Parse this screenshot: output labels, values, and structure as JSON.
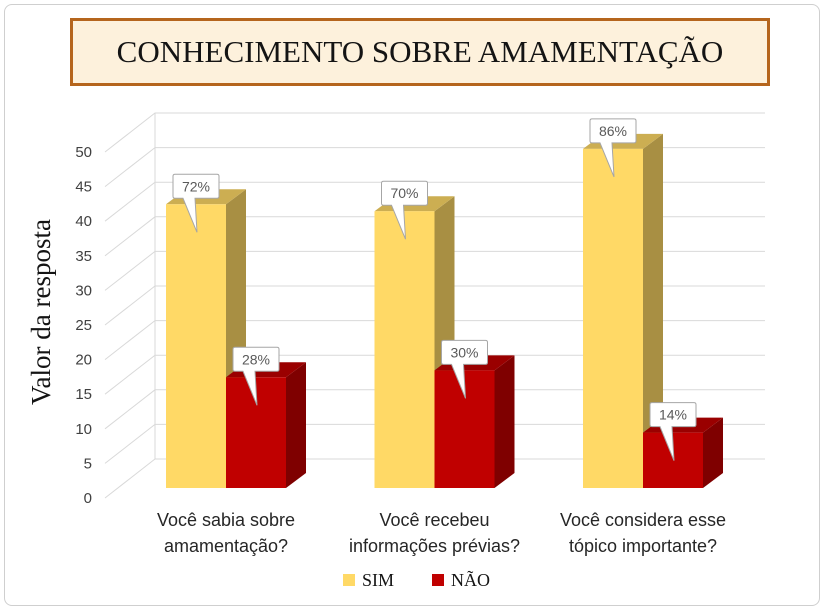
{
  "chart_data": {
    "type": "bar",
    "title": "CONHECIMENTO SOBRE AMAMENTAÇÃO",
    "xlabel": "",
    "ylabel": "Valor da resposta",
    "ylim": [
      0,
      50
    ],
    "yticks": [
      0,
      5,
      10,
      15,
      20,
      25,
      30,
      35,
      40,
      45,
      50
    ],
    "categories": [
      "Você sabia sobre amamentação?",
      "Você recebeu informações prévias?",
      "Você considera esse tópico importante?"
    ],
    "series": [
      {
        "name": "SIM",
        "values": [
          41,
          40,
          49
        ],
        "labels": [
          "72%",
          "70%",
          "86%"
        ],
        "color": "#FFD966"
      },
      {
        "name": "NÃO",
        "values": [
          16,
          17,
          8
        ],
        "labels": [
          "28%",
          "30%",
          "14%"
        ],
        "color": "#C00000"
      }
    ],
    "grid": true,
    "legend": "bottom"
  },
  "colors": {
    "title_border": "#B5651D",
    "title_fill": "#FDF1DC",
    "gridline": "#D9D9D9"
  }
}
